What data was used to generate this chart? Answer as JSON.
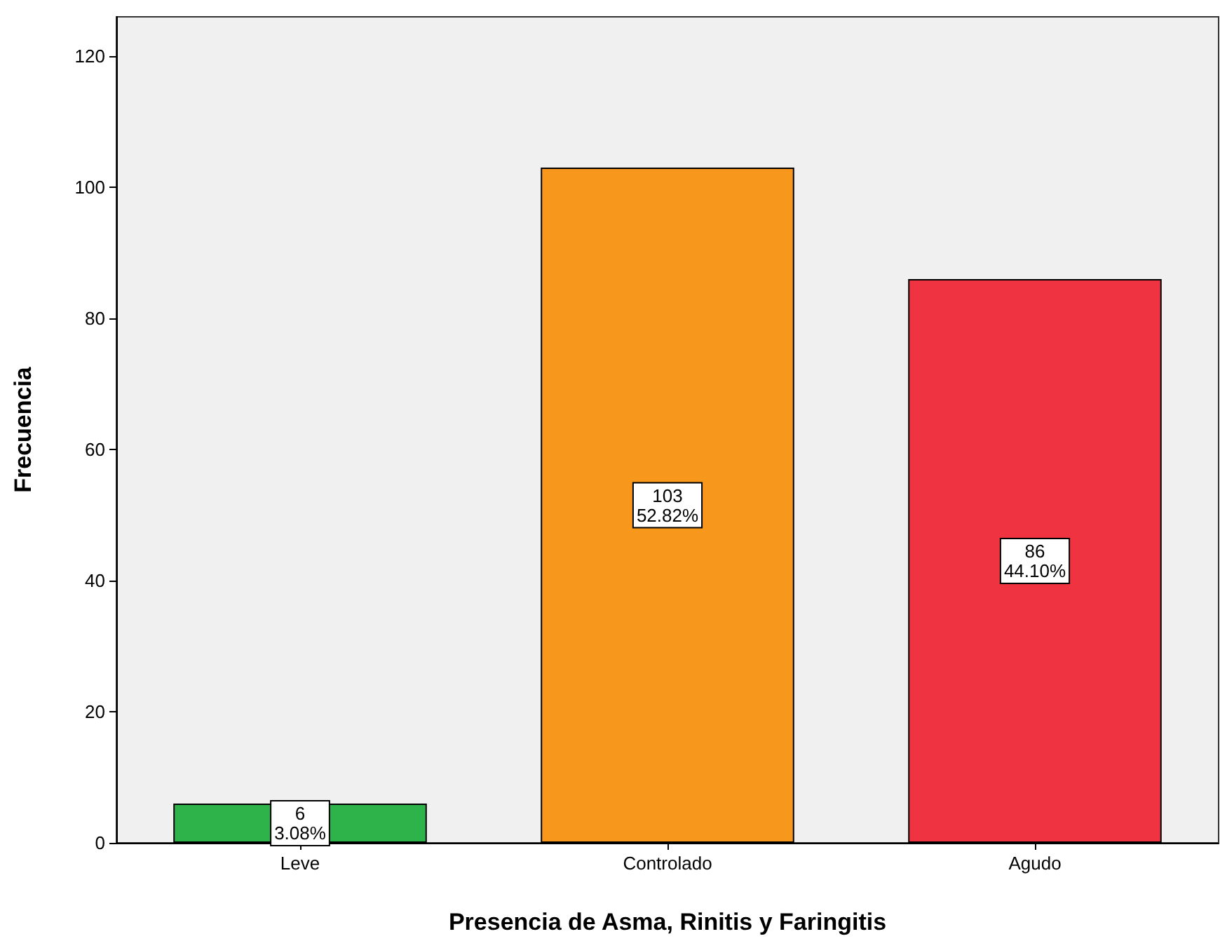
{
  "chart_data": {
    "type": "bar",
    "xlabel": "Presencia de Asma, Rinitis y Faringitis",
    "ylabel": "Frecuencia",
    "categories": [
      "Leve",
      "Controlado",
      "Agudo"
    ],
    "values": [
      6,
      103,
      86
    ],
    "colors": [
      "#2db34a",
      "#f7981d",
      "#ef3340"
    ],
    "value_labels": [
      "6\n3.08%",
      "103\n52.82%",
      "86\n44.10%"
    ],
    "ylim": [
      0,
      126
    ],
    "yticks": [
      0,
      20,
      40,
      60,
      80,
      100,
      120
    ],
    "grid": false
  }
}
